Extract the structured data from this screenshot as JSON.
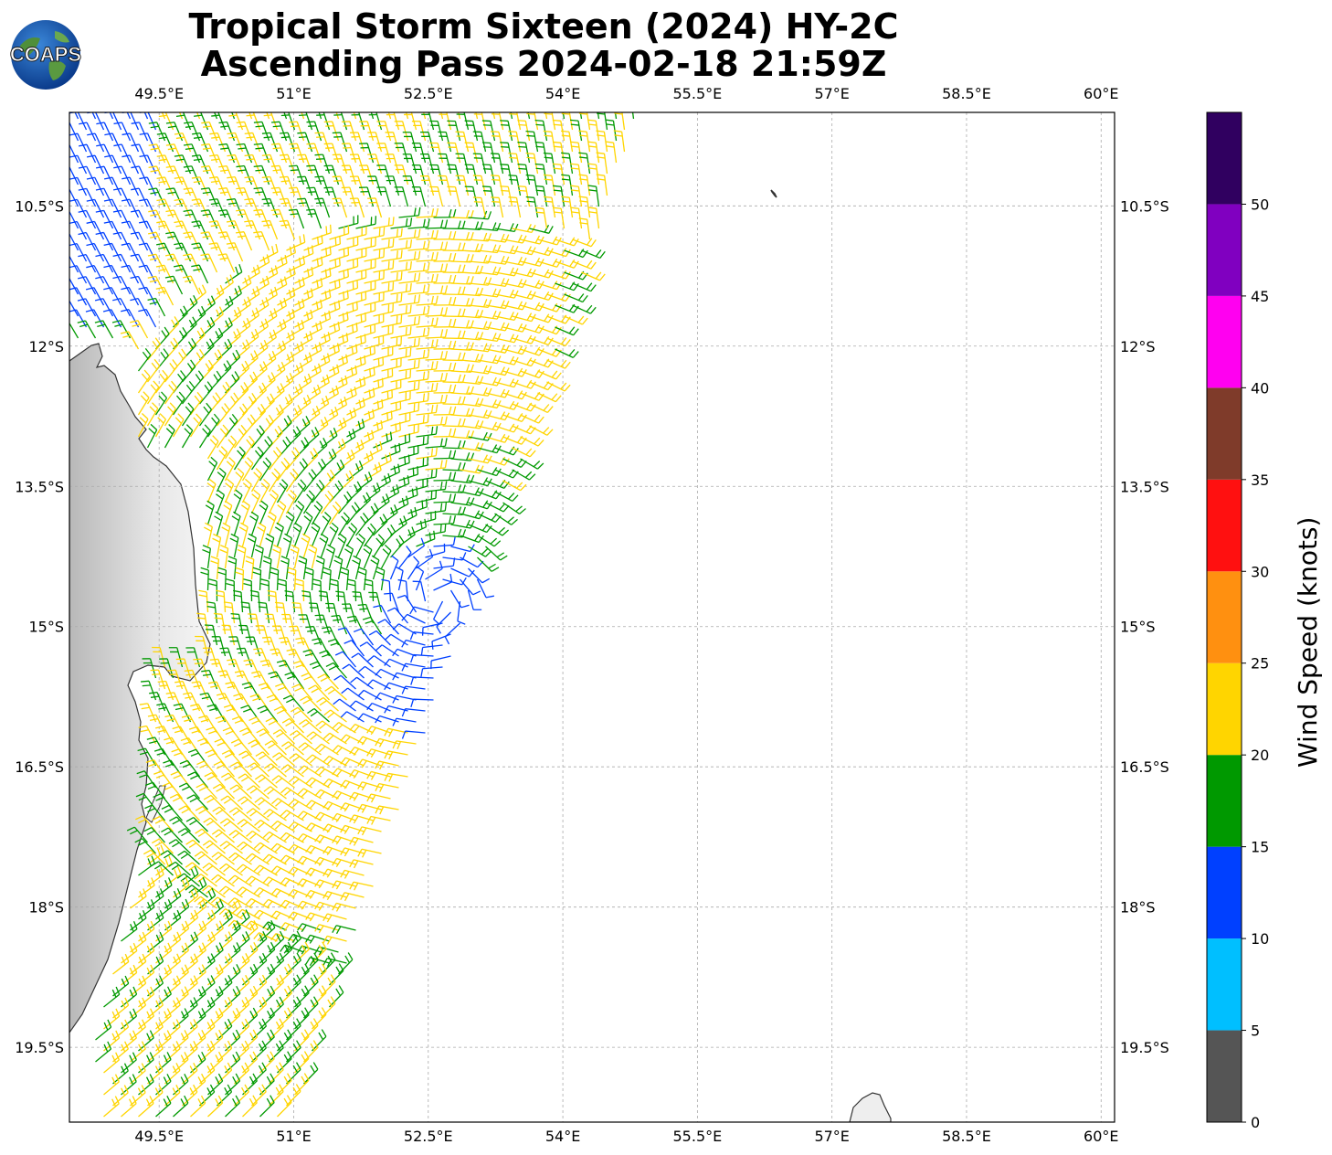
{
  "title": {
    "line1": "Tropical Storm Sixteen (2024) HY-2C",
    "line2": "Ascending Pass 2024-02-18 21:59Z"
  },
  "logo": {
    "text": "COAPS",
    "icon": "globe-logo"
  },
  "map": {
    "lon_range": [
      48.5,
      60.15
    ],
    "lat_range": [
      -9.5,
      -20.3
    ],
    "lon_ticks": [
      "49.5°E",
      "51°E",
      "52.5°E",
      "54°E",
      "55.5°E",
      "57°E",
      "58.5°E",
      "60°E"
    ],
    "lat_ticks": [
      "10.5°S",
      "12°S",
      "13.5°S",
      "15°S",
      "16.5°S",
      "18°S",
      "19.5°S"
    ],
    "grid": true,
    "storm_center_approx": {
      "lon": 52.6,
      "lat": -14.7
    }
  },
  "colorbar": {
    "title": "Wind Speed (knots)",
    "ticks": [
      "0",
      "5",
      "10",
      "15",
      "20",
      "25",
      "30",
      "35",
      "40",
      "45",
      "50"
    ],
    "bins": [
      {
        "range": [
          0,
          5
        ],
        "color": "#555555"
      },
      {
        "range": [
          5,
          10
        ],
        "color": "#00bfff"
      },
      {
        "range": [
          10,
          15
        ],
        "color": "#0040ff"
      },
      {
        "range": [
          15,
          20
        ],
        "color": "#009900"
      },
      {
        "range": [
          20,
          25
        ],
        "color": "#ffd500"
      },
      {
        "range": [
          25,
          30
        ],
        "color": "#ff9010"
      },
      {
        "range": [
          30,
          35
        ],
        "color": "#ff1010"
      },
      {
        "range": [
          35,
          40
        ],
        "color": "#7f3b2a"
      },
      {
        "range": [
          40,
          45
        ],
        "color": "#ff00f0"
      },
      {
        "range": [
          45,
          50
        ],
        "color": "#8000c0"
      },
      {
        "range": [
          50,
          55
        ],
        "color": "#300060"
      }
    ]
  }
}
